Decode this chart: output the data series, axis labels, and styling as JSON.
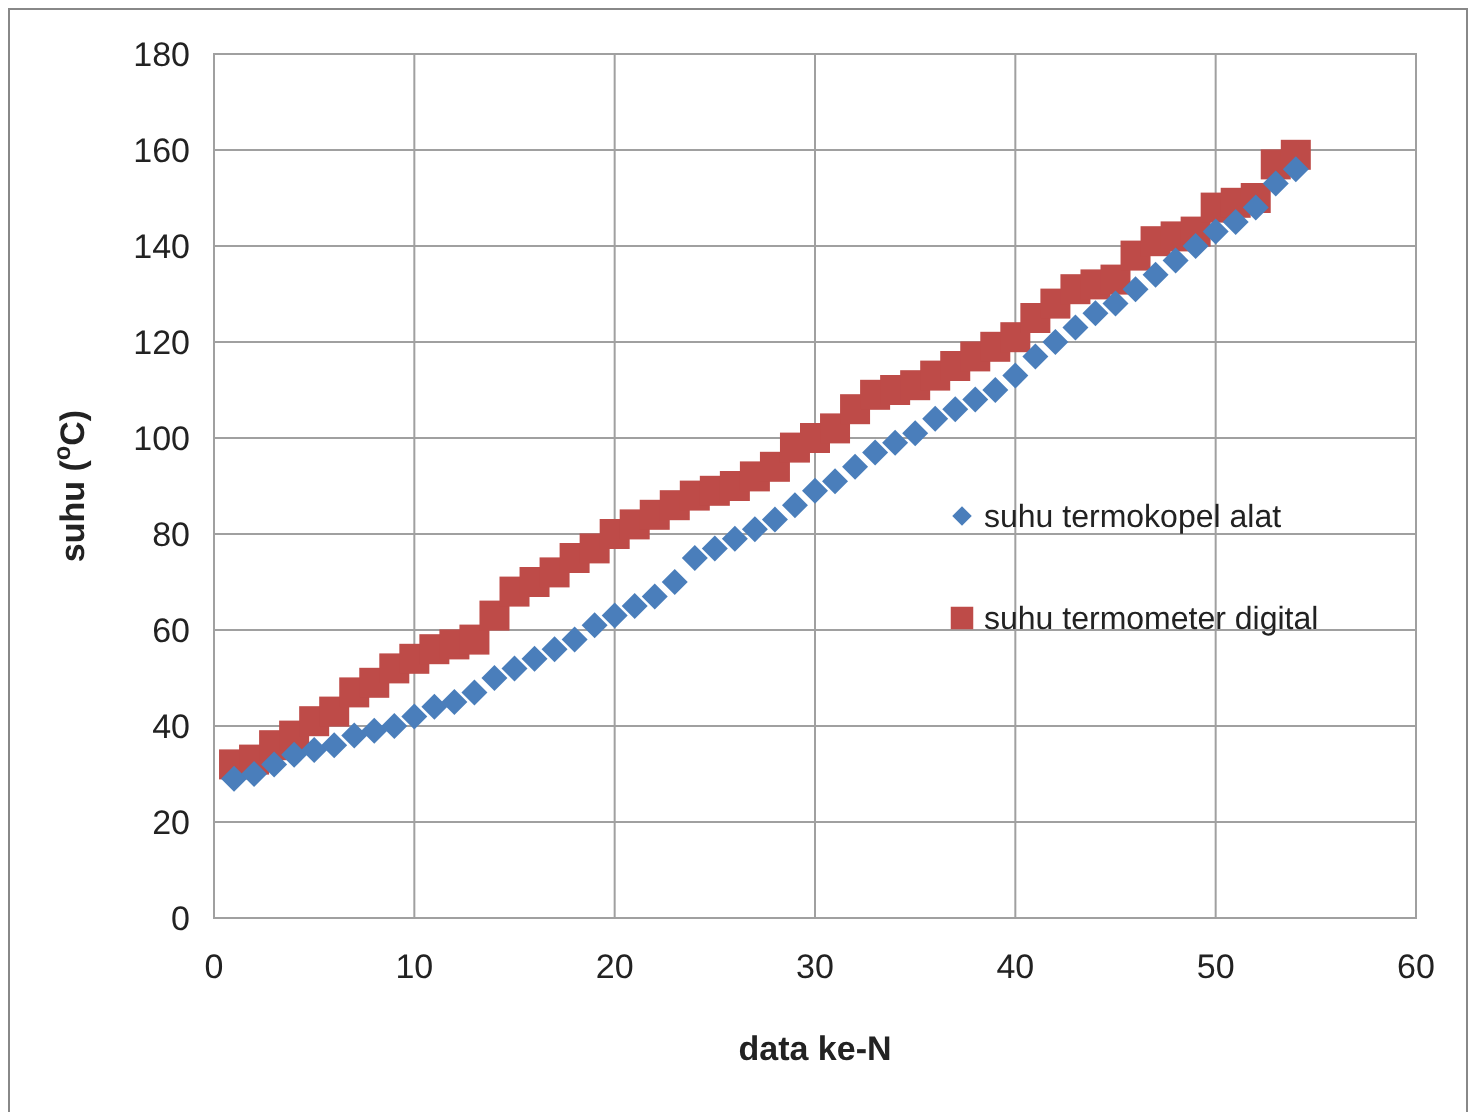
{
  "chart_data": {
    "type": "scatter",
    "xlabel": "data ke-N",
    "ylabel": "suhu  ($^{o}$C)",
    "x": [
      1,
      2,
      3,
      4,
      5,
      6,
      7,
      8,
      9,
      10,
      11,
      12,
      13,
      14,
      15,
      16,
      17,
      18,
      19,
      20,
      21,
      22,
      23,
      24,
      25,
      26,
      27,
      28,
      29,
      30,
      31,
      32,
      33,
      34,
      35,
      36,
      37,
      38,
      39,
      40,
      41,
      42,
      43,
      44,
      45,
      46,
      47,
      48,
      49,
      50,
      51,
      52,
      53,
      54
    ],
    "series": [
      {
        "name": "suhu termokopel alat",
        "color": "#4a7ebb",
        "marker": "diamond",
        "values": [
          29,
          30,
          32,
          34,
          35,
          36,
          38,
          39,
          40,
          42,
          44,
          45,
          47,
          50,
          52,
          54,
          56,
          58,
          61,
          63,
          65,
          67,
          70,
          75,
          77,
          79,
          81,
          83,
          86,
          89,
          91,
          94,
          97,
          99,
          101,
          104,
          106,
          108,
          110,
          113,
          117,
          120,
          123,
          126,
          128,
          131,
          134,
          137,
          140,
          143,
          145,
          148,
          153,
          156
        ]
      },
      {
        "name": "suhu termometer digital",
        "color": "#be4b48",
        "marker": "square",
        "values": [
          32,
          33,
          36,
          38,
          41,
          43,
          47,
          49,
          52,
          54,
          56,
          57,
          58,
          63,
          68,
          70,
          72,
          75,
          77,
          80,
          82,
          84,
          86,
          88,
          89,
          90,
          92,
          94,
          98,
          100,
          102,
          106,
          109,
          110,
          111,
          113,
          115,
          117,
          119,
          121,
          125,
          128,
          131,
          132,
          133,
          138,
          141,
          142,
          143,
          148,
          149,
          150,
          157,
          159
        ]
      }
    ],
    "xlim": [
      0,
      60
    ],
    "xticks": [
      0,
      10,
      20,
      30,
      40,
      50,
      60
    ],
    "ylim": [
      0,
      180
    ],
    "yticks": [
      0,
      20,
      40,
      60,
      80,
      100,
      120,
      140,
      160,
      180
    ],
    "grid": true,
    "legend": "right"
  }
}
